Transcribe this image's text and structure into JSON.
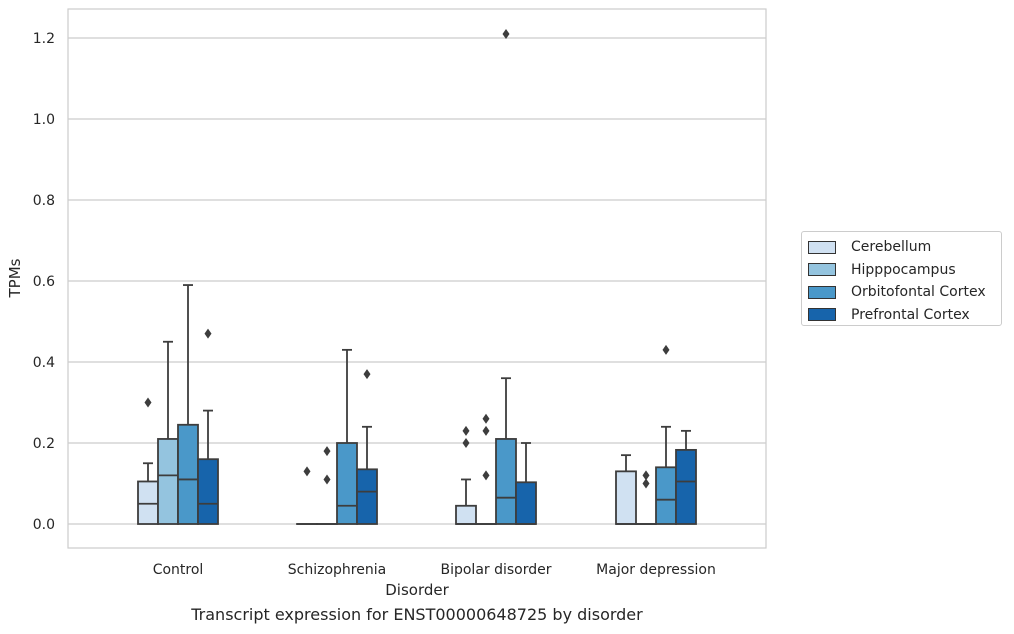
{
  "chart_data": {
    "type": "box",
    "xlabel": "Disorder",
    "ylabel": "TPMs",
    "caption": "Transcript expression for ENST00000648725 by disorder",
    "ylim": [
      -0.06,
      1.27
    ],
    "yticks": [
      "0.0",
      "0.2",
      "0.4",
      "0.6",
      "0.8",
      "1.0",
      "1.2"
    ],
    "grid": true,
    "legend_position": "right",
    "categories": [
      "Control",
      "Schizophrenia",
      "Bipolar disorder",
      "Major depression"
    ],
    "series": [
      {
        "name": "Cerebellum",
        "color": "#d0e1f2",
        "boxes": [
          {
            "whisker_low": 0,
            "q1": 0,
            "median": 0.05,
            "q3": 0.105,
            "whisker_high": 0.15,
            "outliers": [
              0.3
            ]
          },
          {
            "whisker_low": 0,
            "q1": 0,
            "median": 0,
            "q3": 0,
            "whisker_high": 0,
            "outliers": [
              0.13
            ]
          },
          {
            "whisker_low": 0,
            "q1": 0,
            "median": 0,
            "q3": 0.045,
            "whisker_high": 0.11,
            "outliers": [
              0.2,
              0.23
            ]
          },
          {
            "whisker_low": 0,
            "q1": 0,
            "median": 0,
            "q3": 0.13,
            "whisker_high": 0.17,
            "outliers": []
          }
        ]
      },
      {
        "name": "Hipppocampus",
        "color": "#94c4df",
        "boxes": [
          {
            "whisker_low": 0,
            "q1": 0,
            "median": 0.12,
            "q3": 0.21,
            "whisker_high": 0.45,
            "outliers": []
          },
          {
            "whisker_low": 0,
            "q1": 0,
            "median": 0,
            "q3": 0,
            "whisker_high": 0,
            "outliers": [
              0.11,
              0.18
            ]
          },
          {
            "whisker_low": 0,
            "q1": 0,
            "median": 0,
            "q3": 0,
            "whisker_high": 0,
            "outliers": [
              0.12,
              0.23,
              0.26
            ]
          },
          {
            "whisker_low": 0,
            "q1": 0,
            "median": 0,
            "q3": 0,
            "whisker_high": 0,
            "outliers": [
              0.1,
              0.12
            ]
          }
        ]
      },
      {
        "name": "Orbitofontal Cortex",
        "color": "#4a98c9",
        "boxes": [
          {
            "whisker_low": 0,
            "q1": 0,
            "median": 0.11,
            "q3": 0.245,
            "whisker_high": 0.59,
            "outliers": []
          },
          {
            "whisker_low": 0,
            "q1": 0,
            "median": 0.045,
            "q3": 0.2,
            "whisker_high": 0.43,
            "outliers": []
          },
          {
            "whisker_low": 0,
            "q1": 0,
            "median": 0.065,
            "q3": 0.21,
            "whisker_high": 0.36,
            "outliers": [
              1.21
            ]
          },
          {
            "whisker_low": 0,
            "q1": 0,
            "median": 0.06,
            "q3": 0.14,
            "whisker_high": 0.24,
            "outliers": [
              0.43
            ]
          }
        ]
      },
      {
        "name": "Prefrontal Cortex",
        "color": "#1764ab",
        "boxes": [
          {
            "whisker_low": 0,
            "q1": 0,
            "median": 0.05,
            "q3": 0.16,
            "whisker_high": 0.28,
            "outliers": [
              0.47
            ]
          },
          {
            "whisker_low": 0,
            "q1": 0,
            "median": 0.08,
            "q3": 0.135,
            "whisker_high": 0.24,
            "outliers": [
              0.37
            ]
          },
          {
            "whisker_low": 0,
            "q1": 0,
            "median": 0,
            "q3": 0.103,
            "whisker_high": 0.2,
            "outliers": []
          },
          {
            "whisker_low": 0,
            "q1": 0,
            "median": 0.105,
            "q3": 0.183,
            "whisker_high": 0.23,
            "outliers": []
          }
        ]
      }
    ]
  }
}
